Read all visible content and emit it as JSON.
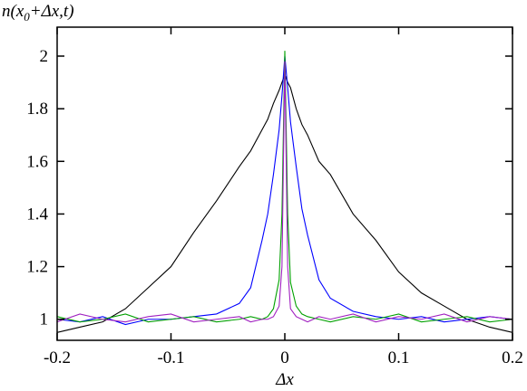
{
  "chart_data": {
    "type": "line",
    "y_label": {
      "main": "n(x",
      "subscript": "0",
      "rest": "+Δx,t)"
    },
    "x_label": "Δx",
    "x": [
      -0.2,
      -0.18,
      -0.16,
      -0.14,
      -0.12,
      -0.1,
      -0.08,
      -0.06,
      -0.04,
      -0.03,
      -0.02,
      -0.015,
      -0.01,
      -0.005,
      -0.0025,
      0,
      0.0025,
      0.005,
      0.01,
      0.015,
      0.02,
      0.03,
      0.04,
      0.06,
      0.08,
      0.1,
      0.12,
      0.14,
      0.16,
      0.18,
      0.2
    ],
    "series": [
      {
        "color": "#000000",
        "values": [
          0.95,
          0.97,
          0.99,
          1.04,
          1.12,
          1.2,
          1.33,
          1.45,
          1.58,
          1.64,
          1.72,
          1.76,
          1.82,
          1.87,
          1.9,
          1.93,
          1.9,
          1.88,
          1.8,
          1.74,
          1.7,
          1.6,
          1.55,
          1.4,
          1.3,
          1.18,
          1.1,
          1.05,
          1.0,
          0.97,
          0.95
        ]
      },
      {
        "color": "#0000ff",
        "values": [
          1.0,
          0.99,
          1.01,
          0.98,
          1.0,
          1.0,
          1.01,
          1.02,
          1.06,
          1.12,
          1.3,
          1.4,
          1.55,
          1.72,
          1.85,
          2.0,
          1.88,
          1.75,
          1.58,
          1.42,
          1.32,
          1.15,
          1.08,
          1.03,
          1.01,
          1.0,
          1.01,
          0.99,
          1.0,
          1.01,
          1.0
        ]
      },
      {
        "color": "#00a000",
        "values": [
          1.01,
          0.99,
          1.0,
          1.02,
          0.99,
          1.0,
          1.01,
          0.99,
          1.0,
          1.01,
          1.0,
          1.01,
          1.04,
          1.15,
          1.4,
          2.02,
          1.4,
          1.14,
          1.05,
          1.02,
          1.01,
          1.0,
          0.99,
          1.01,
          1.0,
          1.02,
          0.99,
          1.0,
          1.01,
          0.99,
          1.0
        ]
      },
      {
        "color": "#a020c0",
        "values": [
          0.99,
          1.02,
          1.0,
          0.99,
          1.01,
          1.02,
          0.99,
          1.0,
          1.01,
          0.99,
          1.0,
          1.0,
          1.01,
          1.05,
          1.2,
          1.98,
          1.2,
          1.04,
          1.01,
          1.0,
          0.99,
          1.01,
          1.0,
          1.02,
          0.99,
          1.01,
          1.0,
          1.02,
          0.99,
          1.01,
          1.0
        ]
      }
    ],
    "xlim": [
      -0.2,
      0.2
    ],
    "ylim": [
      0.92,
      2.11
    ],
    "xticks": [
      -0.2,
      -0.1,
      0,
      0.1,
      0.2
    ],
    "yticks": [
      1,
      1.2,
      1.4,
      1.6,
      1.8,
      2
    ]
  }
}
